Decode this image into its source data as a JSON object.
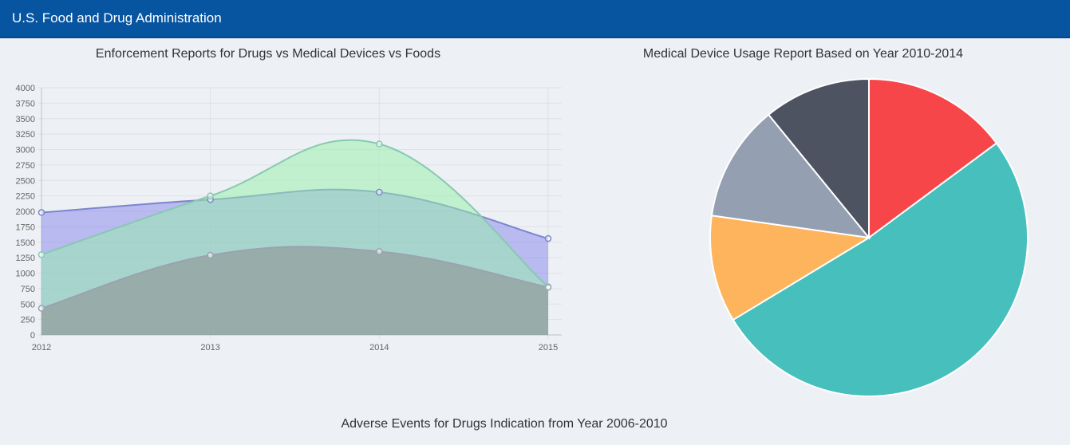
{
  "navbar": {
    "brand": "U.S. Food and Drug Administration"
  },
  "colors": {
    "navbar": "#0754a0",
    "background": "#edf0f5"
  },
  "charts": {
    "area_title": "Enforcement Reports for Drugs vs Medical Devices vs Foods",
    "pie_title": "Medical Device Usage Report Based on Year 2010-2014",
    "bottom_title": "Adverse Events for Drugs Indication from Year 2006-2010"
  },
  "chart_data": [
    {
      "type": "area",
      "title": "Enforcement Reports for Drugs vs Medical Devices vs Foods",
      "x": [
        "2012",
        "2013",
        "2014",
        "2015"
      ],
      "ylim": [
        0,
        4000
      ],
      "ytick_step": 250,
      "grid": true,
      "series": [
        {
          "values": [
            1980,
            2190,
            2310,
            1560
          ],
          "fill": "rgba(120,120,235,0.45)",
          "stroke": "#7b86cc"
        },
        {
          "values": [
            1300,
            2250,
            3090,
            780
          ],
          "fill": "rgba(150,240,170,0.50)",
          "stroke": "#87c9b0"
        },
        {
          "values": [
            430,
            1290,
            1350,
            770
          ],
          "fill": "rgba(140,140,140,0.55)",
          "stroke": "#9aa2b2"
        }
      ]
    },
    {
      "type": "pie",
      "title": "Medical Device Usage Report Based on Year 2010-2014",
      "values": [
        15,
        52,
        11,
        12,
        11
      ],
      "colors": [
        "#f7464a",
        "#46bfbd",
        "#fdb45c",
        "#949fb1",
        "#4d5360"
      ]
    }
  ]
}
